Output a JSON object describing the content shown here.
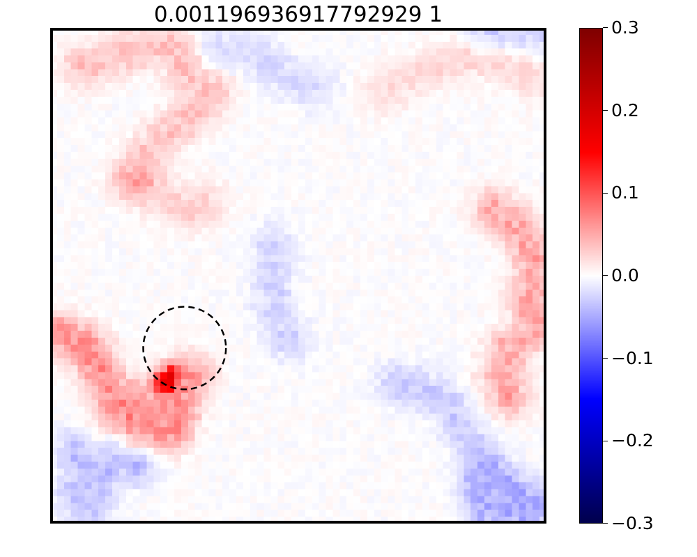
{
  "chart_data": {
    "type": "heatmap",
    "title": "0.001196936917792929 1",
    "grid": false,
    "colormap": "seismic",
    "colorbar": {
      "vmin": -0.3,
      "vmax": 0.3,
      "ticks": [
        0.3,
        0.2,
        0.1,
        0.0,
        -0.1,
        -0.2,
        -0.3
      ],
      "tick_labels": [
        "0.3",
        "0.2",
        "0.1",
        "0.0",
        "−0.1",
        "−0.2",
        "−0.3"
      ]
    },
    "grid_size": [
      72,
      72
    ],
    "axes_ticks_visible": false,
    "features": [
      {
        "sign": "positive",
        "peak_value": 0.17,
        "region": "lower-left arc",
        "path": [
          [
            1,
            44
          ],
          [
            5,
            46
          ],
          [
            7,
            50
          ],
          [
            9,
            53
          ],
          [
            13,
            54
          ],
          [
            16,
            54
          ],
          [
            18,
            52
          ],
          [
            20,
            50
          ],
          [
            17,
            58
          ],
          [
            12,
            57
          ],
          [
            9,
            55
          ]
        ],
        "value": 0.09
      },
      {
        "sign": "positive",
        "peak_value": 0.17,
        "region": "arc peak",
        "path": [
          [
            16,
            51
          ],
          [
            17,
            50
          ]
        ],
        "value": 0.17
      },
      {
        "sign": "positive",
        "region": "upper-left ridge",
        "path": [
          [
            4,
            5
          ],
          [
            10,
            3
          ],
          [
            17,
            2
          ],
          [
            20,
            7
          ],
          [
            23,
            9
          ],
          [
            19,
            13
          ],
          [
            15,
            16
          ],
          [
            11,
            21
          ]
        ],
        "value": 0.05
      },
      {
        "sign": "positive",
        "region": "left mid ridge",
        "path": [
          [
            12,
            22
          ],
          [
            16,
            24
          ],
          [
            20,
            26
          ],
          [
            22,
            25
          ]
        ],
        "value": 0.04
      },
      {
        "sign": "positive",
        "region": "right edge ridge",
        "path": [
          [
            64,
            26
          ],
          [
            67,
            28
          ],
          [
            69,
            31
          ],
          [
            70,
            35
          ],
          [
            69,
            39
          ],
          [
            70,
            43
          ],
          [
            66,
            46
          ],
          [
            65,
            50
          ],
          [
            66,
            53
          ]
        ],
        "value": 0.07
      },
      {
        "sign": "positive",
        "region": "upper-right streak",
        "path": [
          [
            48,
            9
          ],
          [
            53,
            6
          ],
          [
            60,
            4
          ],
          [
            66,
            5
          ],
          [
            70,
            7
          ]
        ],
        "value": 0.03
      },
      {
        "sign": "negative",
        "region": "lower-left patch",
        "path": [
          [
            3,
            61
          ],
          [
            6,
            64
          ],
          [
            3,
            67
          ],
          [
            5,
            69
          ],
          [
            9,
            62
          ],
          [
            12,
            63
          ]
        ],
        "value": -0.05
      },
      {
        "sign": "negative",
        "region": "lower-right patch",
        "path": [
          [
            62,
            67
          ],
          [
            63,
            70
          ],
          [
            66,
            69
          ],
          [
            68,
            70
          ],
          [
            70,
            69
          ],
          [
            64,
            65
          ]
        ],
        "value": -0.07
      },
      {
        "sign": "negative",
        "region": "lower-right diagonal",
        "path": [
          [
            50,
            51
          ],
          [
            54,
            52
          ],
          [
            57,
            54
          ],
          [
            59,
            57
          ],
          [
            61,
            60
          ],
          [
            62,
            63
          ]
        ],
        "value": -0.04
      },
      {
        "sign": "negative",
        "region": "central vertical",
        "path": [
          [
            32,
            31
          ],
          [
            32,
            36
          ],
          [
            32,
            40
          ],
          [
            33,
            43
          ],
          [
            34,
            45
          ]
        ],
        "value": -0.035
      },
      {
        "sign": "negative",
        "region": "top patch",
        "path": [
          [
            24,
            2
          ],
          [
            28,
            3
          ],
          [
            30,
            4
          ],
          [
            34,
            7
          ],
          [
            38,
            8
          ]
        ],
        "value": -0.03
      },
      {
        "sign": "negative",
        "region": "top-right corner",
        "path": [
          [
            63,
            0
          ],
          [
            67,
            0
          ],
          [
            71,
            0
          ]
        ],
        "value": -0.04
      }
    ],
    "annotation": {
      "shape": "dashed-circle",
      "center_cell": [
        19.5,
        46.5
      ],
      "radius_cells": 6
    }
  }
}
